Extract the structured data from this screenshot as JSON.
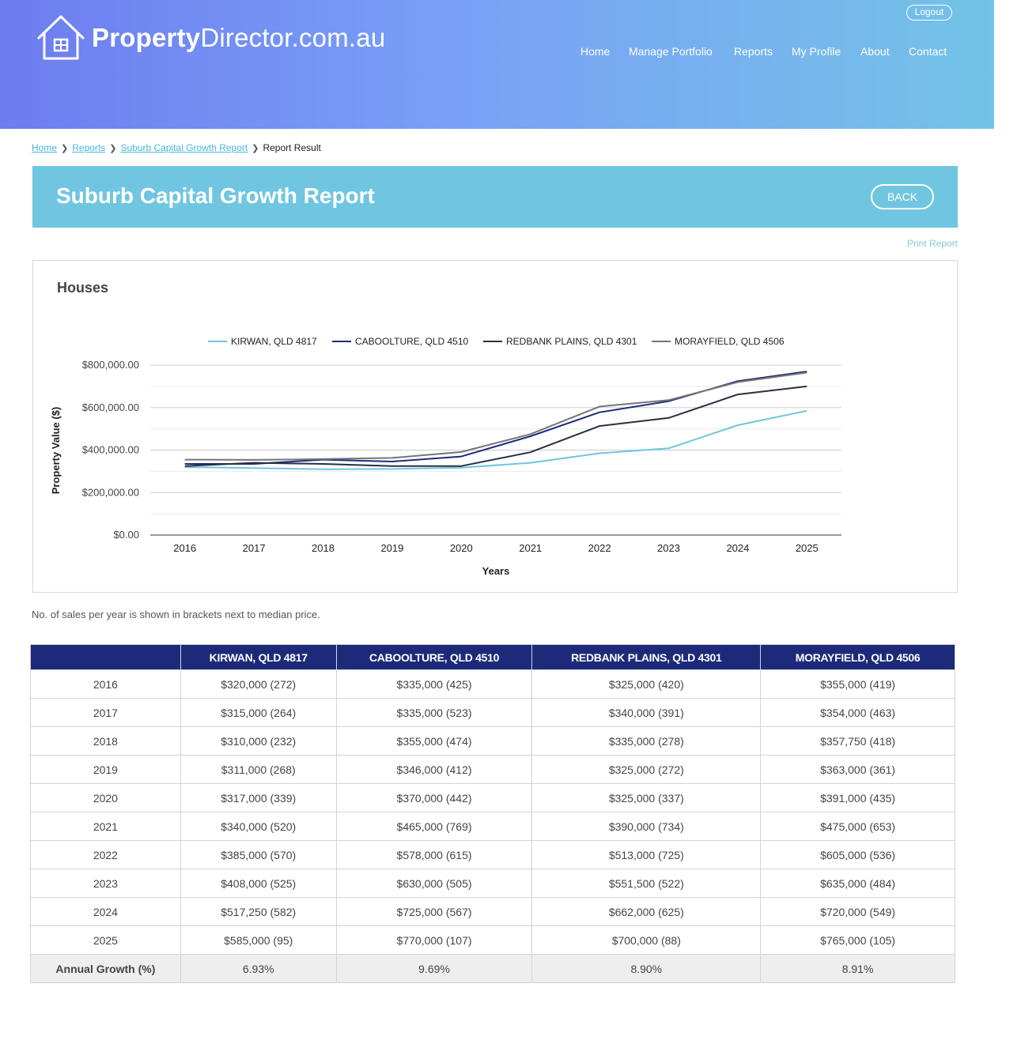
{
  "header": {
    "logo_bold": "Property",
    "logo_light": "Director.com.au",
    "logout_label": "Logout",
    "nav": [
      "Home",
      "Manage Portfolio",
      "Reports",
      "My Profile",
      "About",
      "Contact"
    ]
  },
  "breadcrumb": {
    "links": [
      "Home",
      "Reports",
      "Suburb Capital Growth Report"
    ],
    "current": "Report Result"
  },
  "page": {
    "title": "Suburb Capital Growth Report",
    "back_label": "BACK",
    "print_label": "Print Report"
  },
  "chart_title": "Houses",
  "chart_data": {
    "type": "line",
    "title": "Houses",
    "xlabel": "Years",
    "ylabel": "Property Value ($)",
    "x": [
      "2016",
      "2017",
      "2018",
      "2019",
      "2020",
      "2021",
      "2022",
      "2023",
      "2024",
      "2025"
    ],
    "ylim": [
      0,
      800000
    ],
    "y_ticks": [
      0,
      200000,
      400000,
      600000,
      800000
    ],
    "y_tick_labels": [
      "$0.00",
      "$200,000.00",
      "$400,000.00",
      "$600,000.00",
      "$800,000.00"
    ],
    "grid": true,
    "legend_position": "top",
    "series": [
      {
        "name": "KIRWAN, QLD 4817",
        "color": "#6ec6df",
        "values": [
          320000,
          315000,
          310000,
          311000,
          317000,
          340000,
          385000,
          408000,
          517250,
          585000
        ]
      },
      {
        "name": "CABOOLTURE, QLD 4510",
        "color": "#1f2a80",
        "values": [
          335000,
          335000,
          355000,
          346000,
          370000,
          465000,
          578000,
          630000,
          725000,
          770000
        ]
      },
      {
        "name": "REDBANK PLAINS, QLD 4301",
        "color": "#27303f",
        "values": [
          325000,
          340000,
          335000,
          325000,
          325000,
          390000,
          513000,
          551500,
          662000,
          700000
        ]
      },
      {
        "name": "MORAYFIELD, QLD 4506",
        "color": "#757575",
        "values": [
          355000,
          354000,
          357750,
          363000,
          391000,
          475000,
          605000,
          635000,
          720000,
          765000
        ]
      }
    ]
  },
  "sales_note": "No. of sales per year is shown in brackets next to median price.",
  "table": {
    "headers": [
      "",
      "KIRWAN, QLD 4817",
      "CABOOLTURE, QLD 4510",
      "REDBANK PLAINS, QLD 4301",
      "MORAYFIELD, QLD 4506"
    ],
    "rows": [
      [
        "2016",
        "$320,000 (272)",
        "$335,000 (425)",
        "$325,000 (420)",
        "$355,000 (419)"
      ],
      [
        "2017",
        "$315,000 (264)",
        "$335,000 (523)",
        "$340,000 (391)",
        "$354,000 (463)"
      ],
      [
        "2018",
        "$310,000 (232)",
        "$355,000 (474)",
        "$335,000 (278)",
        "$357,750 (418)"
      ],
      [
        "2019",
        "$311,000 (268)",
        "$346,000 (412)",
        "$325,000 (272)",
        "$363,000 (361)"
      ],
      [
        "2020",
        "$317,000 (339)",
        "$370,000 (442)",
        "$325,000 (337)",
        "$391,000 (435)"
      ],
      [
        "2021",
        "$340,000 (520)",
        "$465,000 (769)",
        "$390,000 (734)",
        "$475,000 (653)"
      ],
      [
        "2022",
        "$385,000 (570)",
        "$578,000 (615)",
        "$513,000 (725)",
        "$605,000 (536)"
      ],
      [
        "2023",
        "$408,000 (525)",
        "$630,000 (505)",
        "$551,500 (522)",
        "$635,000 (484)"
      ],
      [
        "2024",
        "$517,250 (582)",
        "$725,000 (567)",
        "$662,000 (625)",
        "$720,000 (549)"
      ],
      [
        "2025",
        "$585,000 (95)",
        "$770,000 (107)",
        "$700,000 (88)",
        "$765,000 (105)"
      ]
    ],
    "growth_row": [
      "Annual Growth (%)",
      "6.93%",
      "9.69%",
      "8.90%",
      "8.91%"
    ]
  }
}
